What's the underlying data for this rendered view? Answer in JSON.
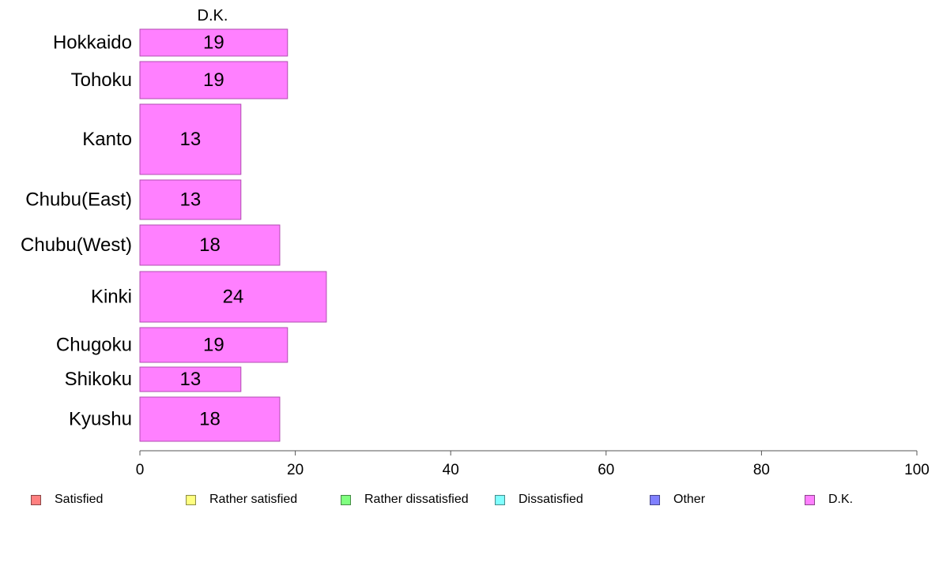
{
  "chart_data": {
    "type": "bar",
    "orientation": "horizontal",
    "column_header": "D.K.",
    "categories": [
      "Hokkaido",
      "Tohoku",
      "Kanto",
      "Chubu(East)",
      "Chubu(West)",
      "Kinki",
      "Chugoku",
      "Shikoku",
      "Kyushu"
    ],
    "series": [
      {
        "name": "D.K.",
        "color": "#ff80ff",
        "values": [
          19,
          19,
          13,
          13,
          18,
          24,
          19,
          13,
          18
        ],
        "data_labels": [
          "19",
          "19",
          "13",
          "13",
          "18",
          "24",
          "19",
          "13",
          "18"
        ]
      }
    ],
    "xlim": [
      0,
      100
    ],
    "xticks": [
      0,
      20,
      40,
      60,
      80,
      100
    ],
    "grid": false,
    "legend_position": "bottom",
    "legend": [
      {
        "label": "Satisfied",
        "color": "#ff8080"
      },
      {
        "label": "Rather satisfied",
        "color": "#ffff80"
      },
      {
        "label": "Rather dissatisfied",
        "color": "#80ff80"
      },
      {
        "label": "Dissatisfied",
        "color": "#80ffff"
      },
      {
        "label": "Other",
        "color": "#8080ff"
      },
      {
        "label": "D.K.",
        "color": "#ff80ff"
      }
    ]
  }
}
